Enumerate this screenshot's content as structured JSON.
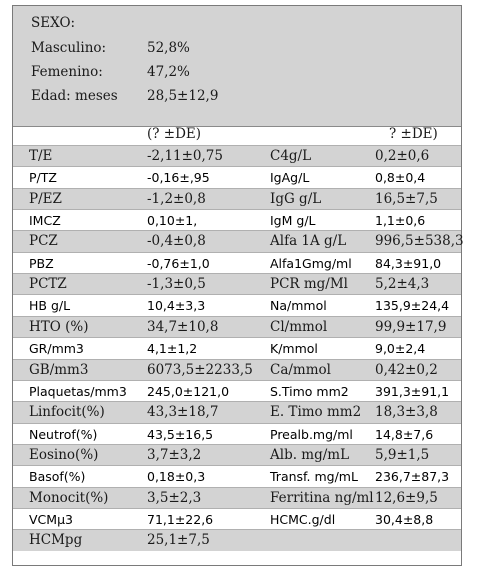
{
  "header": {
    "sexo": "SEXO:",
    "rows": [
      {
        "label": "Masculino:",
        "value": "52,8%"
      },
      {
        "label": "Femenino:",
        "value": "47,2%"
      },
      {
        "label": "Edad: meses",
        "value": "28,5±12,9"
      }
    ]
  },
  "columns": {
    "left": "(? ±DE)",
    "right": "? ±DE)"
  },
  "rows": [
    {
      "l1": "T/E",
      "v1": "-2,11±0,75",
      "l2": "C4g/L",
      "v2": "0,2±0,6",
      "shade": true
    },
    {
      "l1": "P/TZ",
      "v1": "-0,16±,95",
      "l2": "IgAg/L",
      "v2": "0,8±0,4",
      "shade": false
    },
    {
      "l1": "P/EZ",
      "v1": "-1,2±0,8",
      "l2": "IgG g/L",
      "v2": "16,5±7,5",
      "shade": true
    },
    {
      "l1": "IMCZ",
      "v1": "0,10±1,",
      "l2": "IgM g/L",
      "v2": "1,1±0,6",
      "shade": false
    },
    {
      "l1": "PCZ",
      "v1": "-0,4±0,8",
      "l2": "Alfa 1A g/L",
      "v2": "996,5±538,3",
      "shade": true
    },
    {
      "l1": "PBZ",
      "v1": "-0,76±1,0",
      "l2": "Alfa1Gmg/ml",
      "v2": "84,3±91,0",
      "shade": false
    },
    {
      "l1": "PCTZ",
      "v1": "-1,3±0,5",
      "l2": "PCR mg/Ml",
      "v2": "5,2±4,3",
      "shade": true
    },
    {
      "l1": "HB g/L",
      "v1": "10,4±3,3",
      "l2": "Na/mmol",
      "v2": "135,9±24,4",
      "shade": false
    },
    {
      "l1": "HTO (%)",
      "v1": "34,7±10,8",
      "l2": "Cl/mmol",
      "v2": "99,9±17,9",
      "shade": true
    },
    {
      "l1": "GR/mm3",
      "v1": "4,1±1,2",
      "l2": "K/mmol",
      "v2": "9,0±2,4",
      "shade": false
    },
    {
      "l1": "GB/mm3",
      "v1": "6073,5±2233,5",
      "l2": "Ca/mmol",
      "v2": "0,42±0,2",
      "shade": true
    },
    {
      "l1": "Plaquetas/mm3",
      "v1": "245,0±121,0",
      "l2": "S.Timo mm2",
      "v2": "391,3±91,1",
      "shade": false
    },
    {
      "l1": "Linfocit(%)",
      "v1": "43,3±18,7",
      "l2": "E. Timo mm2",
      "v2": "18,3±3,8",
      "shade": true
    },
    {
      "l1": "Neutrof(%)",
      "v1": "43,5±16,5",
      "l2": "Prealb.mg/ml",
      "v2": "14,8±7,6",
      "shade": false
    },
    {
      "l1": "Eosino(%)",
      "v1": "3,7±3,2",
      "l2": "Alb. mg/mL",
      "v2": "5,9±1,5",
      "shade": true
    },
    {
      "l1": "Basof(%)",
      "v1": "0,18±0,3",
      "l2": "Transf. mg/mL",
      "v2": "236,7±87,3",
      "shade": false
    },
    {
      "l1": "Monocit(%)",
      "v1": "3,5±2,3",
      "l2": "Ferritina ng/ml",
      "v2": "12,6±9,5",
      "shade": true
    },
    {
      "l1": "VCMµ3",
      "v1": "71,1±22,6",
      "l2": "HCMC.g/dl",
      "v2": "30,4±8,8",
      "shade": false
    },
    {
      "l1": "HCMpg",
      "v1": "25,1±7,5",
      "l2": "",
      "v2": "",
      "shade": true
    }
  ]
}
